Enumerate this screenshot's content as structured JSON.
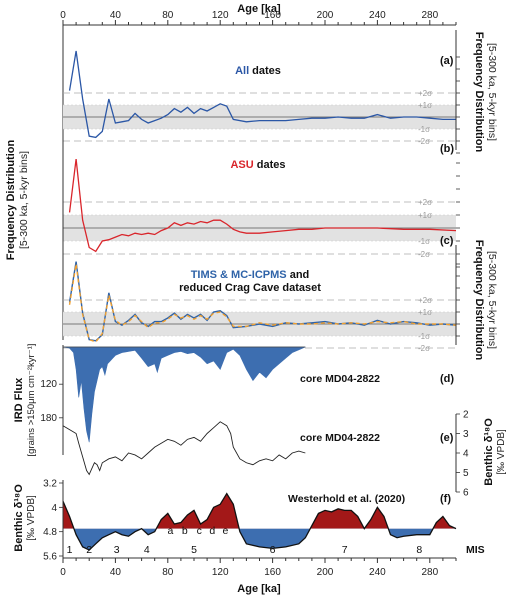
{
  "x_axis": {
    "title": "Age [ka]",
    "min": 0,
    "max": 300,
    "ticks": [
      0,
      40,
      80,
      120,
      160,
      200,
      240,
      280
    ]
  },
  "freq_axis": {
    "title_line1": "Frequency Distribution",
    "title_line2": "[5-300 ka, 5-kyr bins]"
  },
  "sigma_labels": [
    "+2σ",
    "+1σ",
    "-1σ",
    "-2σ"
  ],
  "panels": {
    "a": {
      "tag": "(a)",
      "title_word": "All",
      "title_rest": " dates",
      "color": "#2b57a6"
    },
    "b": {
      "tag": "(b)",
      "title_word": "ASU",
      "title_rest": " dates",
      "color": "#d9252b"
    },
    "c": {
      "tag": "(c)",
      "title_part1": "TIMS & MC-ICPMS",
      "title_part2": " and",
      "title_part3": "reduced Crag Cave dataset",
      "color1": "#2f63a8",
      "color2": "#f0a030"
    },
    "d": {
      "label": "core MD04-2822",
      "tag": "(d)",
      "ylabel1": "IRD Flux",
      "ylabel2": "[grains >150μm cm⁻²kyr⁻¹]",
      "yticks": [
        120,
        180
      ],
      "color": "#3d6eb0"
    },
    "e": {
      "label": "core MD04-2822",
      "tag": "(e)",
      "ylabel1": "Benthic δ¹⁸O",
      "ylabel2": "[‰ VPDB]",
      "yticks": [
        2,
        3,
        4,
        5,
        6
      ]
    },
    "f": {
      "label": "Westerhold et al. (2020)",
      "tag": "(f)",
      "ylabel1": "Benthic δ¹⁸O",
      "ylabel2": "[‰ VPDB]",
      "yticks": [
        "3.2",
        "4",
        "4.8",
        "5.6"
      ],
      "warm_color": "#a31818",
      "cold_color": "#3d6eb0"
    }
  },
  "mis": {
    "label": "MIS",
    "stages": [
      "1",
      "2",
      "3",
      "4",
      "5",
      "6",
      "7",
      "8"
    ],
    "substages": [
      "a",
      "b",
      "c",
      "d",
      "e"
    ]
  },
  "chart_data": [
    {
      "type": "line",
      "panel": "a",
      "title": "All dates",
      "x": [
        5,
        10,
        15,
        20,
        25,
        30,
        35,
        40,
        45,
        50,
        55,
        60,
        65,
        70,
        75,
        80,
        85,
        90,
        95,
        100,
        105,
        110,
        115,
        120,
        125,
        130,
        140,
        150,
        160,
        170,
        180,
        190,
        200,
        210,
        220,
        230,
        240,
        250,
        260,
        270,
        280,
        290,
        300
      ],
      "y": [
        2.2,
        5.5,
        1.5,
        -1.6,
        -1.7,
        -1.2,
        1.5,
        -0.5,
        -0.4,
        -0.3,
        0.3,
        -0.2,
        -0.5,
        -0.3,
        -0.1,
        0.2,
        0.7,
        0.4,
        0.8,
        0.3,
        0.7,
        0.5,
        0.8,
        1.1,
        0.9,
        -0.2,
        -0.4,
        -0.3,
        -0.3,
        -0.3,
        -0.2,
        -0.1,
        -0.1,
        0.0,
        -0.1,
        -0.1,
        0.2,
        -0.1,
        0.0,
        0.0,
        -0.1,
        -0.2,
        -0.2
      ]
    },
    {
      "type": "line",
      "panel": "b",
      "title": "ASU dates",
      "x": [
        5,
        10,
        15,
        20,
        25,
        30,
        35,
        40,
        45,
        50,
        55,
        60,
        65,
        70,
        75,
        80,
        85,
        90,
        95,
        100,
        105,
        110,
        115,
        120,
        125,
        130,
        135,
        140,
        150,
        160,
        170,
        180,
        190,
        200,
        220,
        240,
        260,
        280,
        300
      ],
      "y": [
        1.2,
        5.3,
        0.6,
        -1.5,
        -1.8,
        -1.0,
        -0.9,
        -0.7,
        -0.5,
        -0.6,
        -0.4,
        -0.5,
        -0.4,
        -0.5,
        -0.2,
        0.0,
        0.4,
        0.2,
        0.4,
        0.3,
        0.5,
        0.4,
        0.6,
        0.6,
        0.3,
        -0.1,
        -0.3,
        -0.4,
        -0.4,
        -0.3,
        -0.2,
        -0.1,
        -0.1,
        0.0,
        0.0,
        0.0,
        -0.1,
        -0.1,
        -0.2
      ]
    },
    {
      "type": "line",
      "panel": "c",
      "title": "TIMS & MC-ICPMS and reduced Crag Cave dataset",
      "x": [
        5,
        10,
        15,
        20,
        25,
        30,
        35,
        40,
        45,
        50,
        55,
        60,
        65,
        70,
        75,
        80,
        85,
        90,
        95,
        100,
        105,
        110,
        115,
        120,
        125,
        130,
        140,
        150,
        160,
        170,
        180,
        190,
        200,
        210,
        220,
        230,
        240,
        250,
        260,
        270,
        280,
        290,
        300
      ],
      "series": [
        {
          "name": "TIMS & MC-ICPMS",
          "y": [
            1.8,
            5.2,
            0.9,
            -1.3,
            -1.4,
            -0.9,
            2.6,
            0.2,
            -0.1,
            0.3,
            0.8,
            0.1,
            -0.2,
            0.2,
            0.2,
            0.5,
            0.9,
            0.4,
            0.8,
            0.5,
            0.8,
            0.3,
            1.0,
            1.1,
            0.7,
            -0.3,
            -0.2,
            0.0,
            -0.2,
            0.1,
            0.0,
            0.1,
            0.2,
            0.0,
            0.1,
            -0.1,
            0.3,
            0.0,
            0.2,
            0.1,
            -0.1,
            0.0,
            -0.1
          ]
        },
        {
          "name": "reduced Crag Cave dataset",
          "y": [
            1.6,
            5.0,
            0.8,
            -1.3,
            -1.5,
            -0.8,
            2.4,
            0.3,
            -0.1,
            0.2,
            0.7,
            0.2,
            -0.3,
            0.1,
            0.1,
            0.4,
            0.8,
            0.5,
            0.7,
            0.4,
            0.7,
            0.4,
            0.9,
            1.0,
            0.6,
            -0.2,
            -0.2,
            0.1,
            -0.1,
            0.1,
            0.0,
            0.0,
            0.1,
            0.0,
            0.1,
            0.0,
            0.2,
            0.1,
            0.2,
            0.0,
            0.0,
            0.0,
            -0.1
          ]
        }
      ]
    },
    {
      "type": "area",
      "panel": "d",
      "title": "IRD Flux, core MD04-2822",
      "ylim": [
        0,
        180
      ],
      "x": [
        0,
        5,
        8,
        10,
        12,
        14,
        16,
        18,
        20,
        22,
        24,
        26,
        28,
        30,
        32,
        34,
        36,
        38,
        40,
        45,
        50,
        55,
        60,
        65,
        70,
        72,
        75,
        80,
        85,
        90,
        95,
        100,
        105,
        110,
        115,
        120,
        125,
        130,
        135,
        140,
        145,
        150,
        155,
        160,
        165,
        170,
        175,
        180,
        185
      ],
      "y": [
        0,
        2,
        10,
        40,
        90,
        60,
        110,
        150,
        170,
        120,
        80,
        60,
        40,
        35,
        50,
        30,
        25,
        20,
        15,
        10,
        8,
        6,
        20,
        35,
        30,
        45,
        20,
        15,
        10,
        8,
        12,
        10,
        18,
        30,
        25,
        40,
        10,
        4,
        15,
        40,
        60,
        45,
        55,
        40,
        30,
        20,
        10,
        5,
        0
      ]
    },
    {
      "type": "line",
      "panel": "e",
      "title": "Benthic δ18O, core MD04-2822",
      "ylim": [
        2,
        6
      ],
      "x": [
        0,
        5,
        10,
        12,
        15,
        18,
        20,
        22,
        24,
        26,
        28,
        30,
        35,
        40,
        45,
        50,
        55,
        60,
        65,
        70,
        75,
        80,
        85,
        90,
        95,
        100,
        105,
        110,
        115,
        120,
        125,
        128,
        130,
        135,
        140,
        145,
        150,
        155,
        160,
        165,
        170,
        175,
        180,
        185
      ],
      "y": [
        2.6,
        2.8,
        3.0,
        3.5,
        4.2,
        4.9,
        5.1,
        4.8,
        4.5,
        4.6,
        4.9,
        4.5,
        4.3,
        4.2,
        4.4,
        4.0,
        4.1,
        4.3,
        4.0,
        3.7,
        3.5,
        3.3,
        3.4,
        3.6,
        3.3,
        3.2,
        3.4,
        3.0,
        2.7,
        2.4,
        2.6,
        3.0,
        3.7,
        4.3,
        4.5,
        4.6,
        4.4,
        4.3,
        4.4,
        4.1,
        4.3,
        4.0,
        3.9,
        4.0
      ]
    },
    {
      "type": "area",
      "panel": "f",
      "title": "Benthic δ18O, Westerhold et al. (2020)",
      "ylim": [
        3.2,
        5.6
      ],
      "baseline": 4.7,
      "x": [
        0,
        5,
        10,
        15,
        20,
        25,
        30,
        35,
        40,
        45,
        50,
        55,
        60,
        65,
        70,
        75,
        80,
        85,
        90,
        95,
        100,
        105,
        110,
        115,
        120,
        125,
        130,
        135,
        140,
        150,
        160,
        170,
        180,
        185,
        190,
        195,
        200,
        205,
        210,
        215,
        220,
        225,
        230,
        235,
        240,
        245,
        250,
        255,
        260,
        270,
        280,
        285,
        290,
        295,
        300
      ],
      "y": [
        3.8,
        4.3,
        4.9,
        5.3,
        5.4,
        5.2,
        5.0,
        4.9,
        4.8,
        4.9,
        4.95,
        4.8,
        4.7,
        4.9,
        4.8,
        4.4,
        4.2,
        4.55,
        4.5,
        4.25,
        4.1,
        4.55,
        4.4,
        4.0,
        3.9,
        3.55,
        3.9,
        4.8,
        5.2,
        5.3,
        5.35,
        5.3,
        5.2,
        5.0,
        4.6,
        4.2,
        4.1,
        4.15,
        4.05,
        4.1,
        4.1,
        4.3,
        4.7,
        4.4,
        4.0,
        4.3,
        4.9,
        5.0,
        4.95,
        4.9,
        4.9,
        4.5,
        4.3,
        4.6,
        4.7
      ]
    }
  ]
}
